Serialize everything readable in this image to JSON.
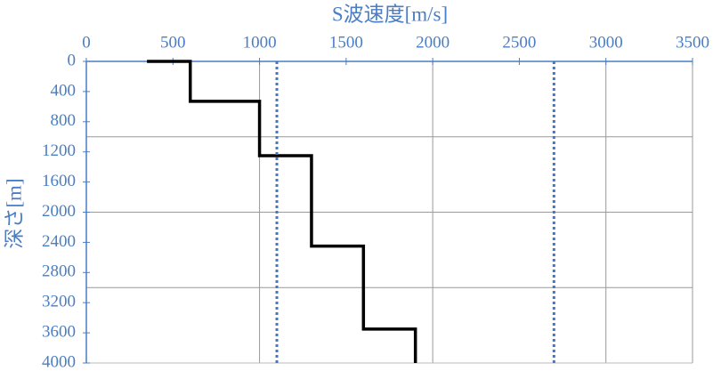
{
  "chart_data": {
    "type": "line",
    "title": "S波速度[m/s]",
    "y_label": "深さ[m]",
    "xlim": [
      0,
      3500
    ],
    "xticks": [
      0,
      500,
      1000,
      1500,
      2000,
      2500,
      3000,
      3500
    ],
    "ylim": [
      0,
      4000
    ],
    "yticks": [
      0,
      400,
      800,
      1200,
      1600,
      2000,
      2400,
      2800,
      3200,
      3600,
      4000
    ],
    "y_inverted": true,
    "x_axis_position": "top",
    "xgrid": [
      1000,
      2000,
      3000
    ],
    "ygrid": [
      1000,
      2000,
      3000
    ],
    "series": [
      {
        "color": "#000000",
        "style": "solid",
        "x": [
          350,
          600,
          600,
          1000,
          1000,
          1300,
          1300,
          1600,
          1600,
          1900,
          1900
        ],
        "y": [
          0,
          0,
          530,
          530,
          1250,
          1250,
          2450,
          2450,
          3550,
          3550,
          4000
        ]
      },
      {
        "color": "#3a78d4",
        "style": "dotted",
        "x": [
          1100,
          1100
        ],
        "y": [
          0,
          4000
        ]
      },
      {
        "color": "#3a78d4",
        "style": "dotted",
        "x": [
          2700,
          2700
        ],
        "y": [
          0,
          4000
        ]
      }
    ]
  }
}
